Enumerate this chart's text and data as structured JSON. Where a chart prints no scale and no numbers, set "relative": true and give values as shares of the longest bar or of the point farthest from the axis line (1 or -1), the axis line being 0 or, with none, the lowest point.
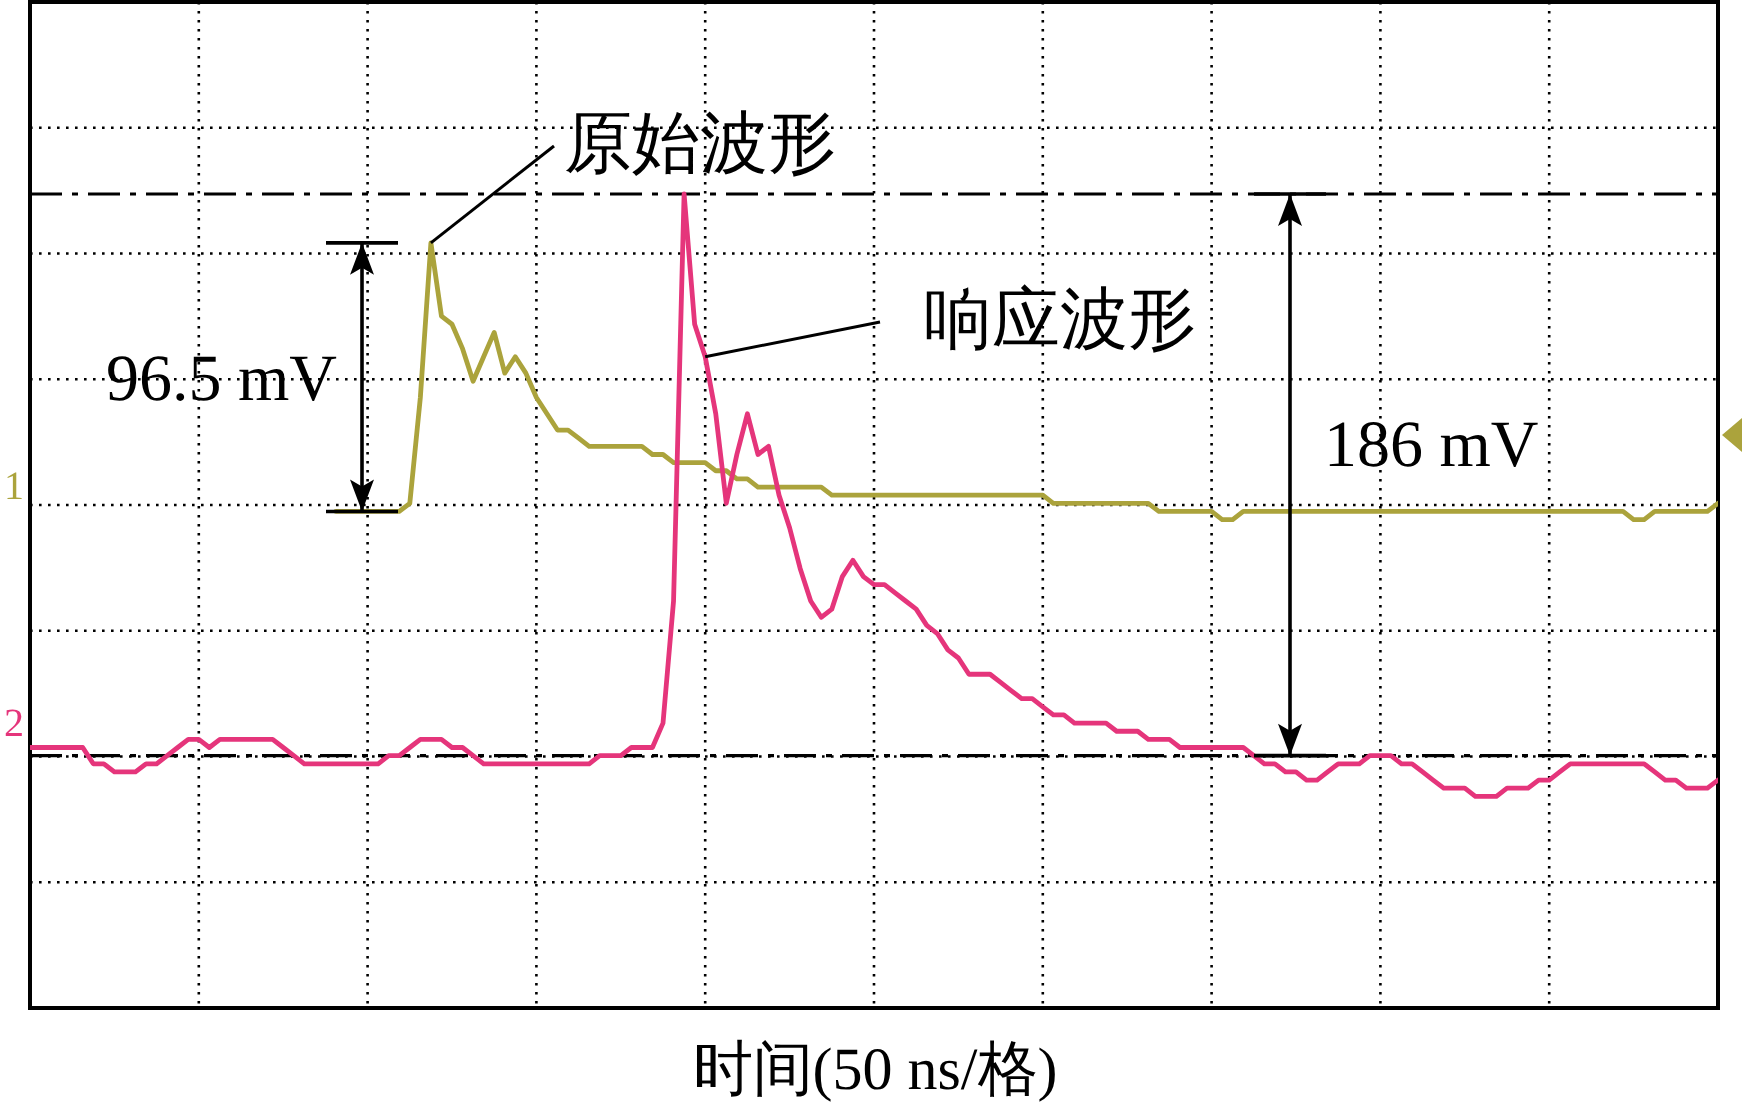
{
  "chart_data": {
    "type": "line",
    "relative": true,
    "xlabel": "时间(50 ns/格)",
    "categories": [
      null,
      null,
      null,
      null,
      null,
      null,
      null,
      null,
      null,
      null,
      null,
      null,
      null,
      null,
      null,
      null,
      null,
      null,
      null,
      null,
      null,
      null,
      null,
      null,
      null,
      null,
      null,
      null,
      null,
      null,
      null,
      null,
      null,
      null,
      null,
      null,
      null,
      null,
      null,
      null,
      null,
      null,
      null,
      null,
      null,
      null,
      null,
      null,
      null,
      null,
      null,
      null,
      null,
      null,
      null,
      null,
      null,
      null,
      null,
      null,
      null,
      null,
      null,
      null,
      null,
      null,
      null,
      null,
      null,
      null,
      null,
      null,
      null,
      null,
      null,
      null,
      null,
      null,
      null,
      null,
      null,
      null,
      null,
      null,
      null,
      null,
      null,
      null,
      null,
      null,
      null,
      null,
      null,
      null,
      null,
      null,
      null,
      null,
      null,
      null,
      null,
      null,
      null,
      null,
      null,
      null,
      null,
      null,
      null,
      null,
      null,
      null,
      null,
      null,
      null,
      null,
      null,
      null,
      null,
      null,
      null,
      null,
      null,
      null,
      null,
      null,
      null,
      null,
      null,
      null,
      null,
      null,
      null,
      null,
      null,
      null,
      null,
      null,
      null,
      null,
      null,
      null,
      null,
      null,
      null,
      null,
      null,
      null,
      null,
      null,
      null,
      null,
      null,
      null,
      null,
      null,
      null,
      null,
      null,
      null,
      null
    ],
    "series": [
      {
        "name": "1",
        "color": "#aba33c",
        "values": [
          null,
          null,
          null,
          null,
          null,
          null,
          null,
          null,
          null,
          null,
          null,
          null,
          null,
          null,
          null,
          null,
          null,
          null,
          null,
          null,
          null,
          null,
          null,
          null,
          null,
          null,
          null,
          null,
          null,
          0.61,
          0.61,
          0.61,
          0.61,
          0.61,
          0.61,
          0.61,
          0.62,
          0.75,
          0.94,
          0.85,
          0.84,
          0.81,
          0.77,
          0.8,
          0.83,
          0.78,
          0.8,
          0.78,
          0.75,
          0.73,
          0.71,
          0.71,
          0.7,
          0.69,
          0.69,
          0.69,
          0.69,
          0.69,
          0.69,
          0.68,
          0.68,
          0.67,
          0.67,
          0.67,
          0.67,
          0.66,
          0.66,
          0.65,
          0.65,
          0.64,
          0.64,
          0.64,
          0.64,
          0.64,
          0.64,
          0.64,
          0.63,
          0.63,
          0.63,
          0.63,
          0.63,
          0.63,
          0.63,
          0.63,
          0.63,
          0.63,
          0.63,
          0.63,
          0.63,
          0.63,
          0.63,
          0.63,
          0.63,
          0.63,
          0.63,
          0.63,
          0.63,
          0.62,
          0.62,
          0.62,
          0.62,
          0.62,
          0.62,
          0.62,
          0.62,
          0.62,
          0.62,
          0.61,
          0.61,
          0.61,
          0.61,
          0.61,
          0.61,
          0.6,
          0.6,
          0.61,
          0.61,
          0.61,
          0.61,
          0.61,
          0.61,
          0.61,
          0.61,
          0.61,
          0.61,
          0.61,
          0.61,
          0.61,
          0.61,
          0.61,
          0.61,
          0.61,
          0.61,
          0.61,
          0.61,
          0.61,
          0.61,
          0.61,
          0.61,
          0.61,
          0.61,
          0.61,
          0.61,
          0.61,
          0.61,
          0.61,
          0.61,
          0.61,
          0.61,
          0.61,
          0.61,
          0.61,
          0.6,
          0.6,
          0.61,
          0.61,
          0.61,
          0.61,
          0.61,
          0.61,
          0.62
        ]
      },
      {
        "name": "2",
        "color": "#e5357b",
        "values": [
          0.32,
          0.32,
          0.32,
          0.32,
          0.32,
          0.32,
          0.3,
          0.3,
          0.29,
          0.29,
          0.29,
          0.3,
          0.3,
          0.31,
          0.32,
          0.33,
          0.33,
          0.32,
          0.33,
          0.33,
          0.33,
          0.33,
          0.33,
          0.33,
          0.32,
          0.31,
          0.3,
          0.3,
          0.3,
          0.3,
          0.3,
          0.3,
          0.3,
          0.3,
          0.31,
          0.31,
          0.32,
          0.33,
          0.33,
          0.33,
          0.32,
          0.32,
          0.31,
          0.3,
          0.3,
          0.3,
          0.3,
          0.3,
          0.3,
          0.3,
          0.3,
          0.3,
          0.3,
          0.3,
          0.31,
          0.31,
          0.31,
          0.32,
          0.32,
          0.32,
          0.35,
          0.5,
          1,
          0.84,
          0.8,
          0.73,
          0.62,
          0.68,
          0.73,
          0.68,
          0.69,
          0.63,
          0.59,
          0.54,
          0.5,
          0.48,
          0.49,
          0.53,
          0.55,
          0.53,
          0.52,
          0.52,
          0.51,
          0.5,
          0.49,
          0.47,
          0.46,
          0.44,
          0.43,
          0.41,
          0.41,
          0.41,
          0.4,
          0.39,
          0.38,
          0.38,
          0.37,
          0.36,
          0.36,
          0.35,
          0.35,
          0.35,
          0.35,
          0.34,
          0.34,
          0.34,
          0.33,
          0.33,
          0.33,
          0.32,
          0.32,
          0.32,
          0.32,
          0.32,
          0.32,
          0.32,
          0.31,
          0.3,
          0.3,
          0.29,
          0.29,
          0.28,
          0.28,
          0.29,
          0.3,
          0.3,
          0.3,
          0.31,
          0.31,
          0.31,
          0.3,
          0.3,
          0.29,
          0.28,
          0.27,
          0.27,
          0.27,
          0.26,
          0.26,
          0.26,
          0.27,
          0.27,
          0.27,
          0.28,
          0.28,
          0.29,
          0.3,
          0.3,
          0.3,
          0.3,
          0.3,
          0.3,
          0.3,
          0.3,
          0.29,
          0.28,
          0.28,
          0.27,
          0.27,
          0.27,
          0.28
        ]
      }
    ],
    "ref_lines": [
      {
        "axis": "y",
        "value": 1,
        "color": "#000000",
        "line_style": "dashed"
      },
      {
        "axis": "y",
        "value": 0.31,
        "color": "#000000",
        "line_style": "dashed"
      }
    ],
    "annotations": [
      {
        "text": "原始波形",
        "y": 0.94
      },
      "响应波形",
      "96.5 mV",
      "186 mV"
    ],
    "grid": true
  }
}
